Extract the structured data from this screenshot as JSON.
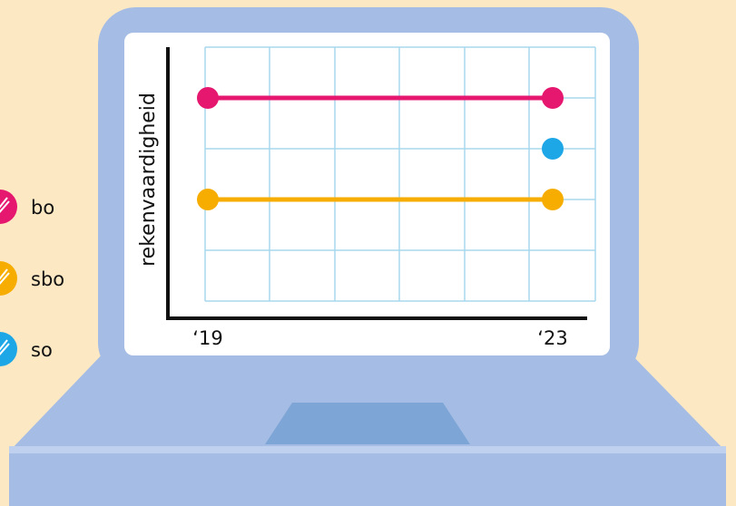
{
  "colors": {
    "background": "#fde8c4",
    "laptop": "#a5bde4",
    "laptop_dark": "#7da5d6",
    "laptop_light": "#bfd1ee",
    "screen": "#ffffff",
    "grid": "#a8d8ee",
    "axis": "#111111",
    "bo": "#e5176f",
    "sbo": "#f6ad00",
    "so": "#1ea7e6"
  },
  "legend": {
    "items": [
      {
        "label": "bo",
        "color": "#e5176f"
      },
      {
        "label": "sbo",
        "color": "#f6ad00"
      },
      {
        "label": "so",
        "color": "#1ea7e6"
      }
    ]
  },
  "chart_data": {
    "type": "line",
    "title": "",
    "xlabel": "",
    "ylabel": "rekenvaardigheid",
    "x_tick_labels": [
      "‘19",
      "‘23"
    ],
    "grid": true,
    "legend_position": "left",
    "series": [
      {
        "name": "bo",
        "color": "#e5176f",
        "points": [
          {
            "x": 2019,
            "y": 4
          },
          {
            "x": 2023,
            "y": 4
          }
        ]
      },
      {
        "name": "sbo",
        "color": "#f6ad00",
        "points": [
          {
            "x": 2019,
            "y": 2
          },
          {
            "x": 2023,
            "y": 2
          }
        ]
      },
      {
        "name": "so",
        "color": "#1ea7e6",
        "points": [
          {
            "x": 2023,
            "y": 3
          }
        ]
      }
    ]
  }
}
